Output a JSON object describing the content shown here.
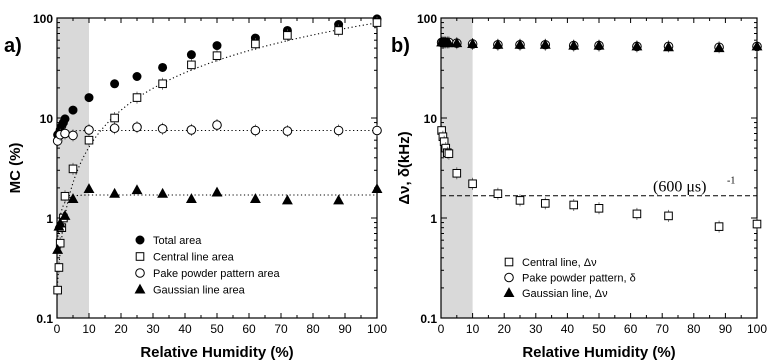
{
  "chart_data": [
    {
      "type": "scatter",
      "panel_label": "a)",
      "xlabel": "Relative Humidity (%)",
      "ylabel": "MC (%)",
      "xlim": [
        0,
        100
      ],
      "ylim": [
        0.1,
        100
      ],
      "yscale": "log",
      "x_ticks": [
        "0",
        "10",
        "20",
        "30",
        "40",
        "50",
        "60",
        "70",
        "80",
        "90",
        "100"
      ],
      "y_ticks": [
        "0.1",
        "1",
        "10",
        "100"
      ],
      "shaded_region": [
        0,
        10
      ],
      "legend_position": "bottom-center",
      "series": [
        {
          "name": "Total area",
          "marker": "filled-circle",
          "x": [
            0.2,
            0.6,
            1,
            1.5,
            2,
            2.5,
            5,
            10,
            18,
            25,
            33,
            42,
            50,
            62,
            72,
            88,
            100
          ],
          "y": [
            6.8,
            7.0,
            7.6,
            8.3,
            9.0,
            9.8,
            12.0,
            16.0,
            22.0,
            26.0,
            32.0,
            43.0,
            53.0,
            63.0,
            75.0,
            86.0,
            98.0
          ]
        },
        {
          "name": "Central line area",
          "marker": "open-square",
          "x": [
            0.2,
            0.6,
            1,
            1.5,
            2,
            2.5,
            5,
            10,
            18,
            25,
            33,
            42,
            50,
            62,
            72,
            88,
            100
          ],
          "y": [
            0.19,
            0.32,
            0.56,
            0.8,
            1.0,
            1.65,
            3.1,
            6.0,
            10.0,
            16.0,
            22.0,
            34.0,
            42.0,
            55.0,
            67.0,
            75.0,
            90.0
          ]
        },
        {
          "name": "Pake powder pattern area",
          "marker": "open-circle",
          "x": [
            0.2,
            1,
            2.5,
            5,
            10,
            18,
            25,
            33,
            42,
            50,
            62,
            72,
            88,
            100
          ],
          "y": [
            5.9,
            6.8,
            7.0,
            6.7,
            7.6,
            7.9,
            8.1,
            7.8,
            7.6,
            8.5,
            7.5,
            7.4,
            7.5,
            7.5
          ]
        },
        {
          "name": "Gaussian line area",
          "marker": "filled-triangle",
          "x": [
            0.2,
            0.6,
            1,
            2.5,
            5,
            10,
            18,
            25,
            33,
            42,
            50,
            62,
            72,
            88,
            100
          ],
          "y": [
            0.48,
            0.82,
            0.88,
            1.05,
            1.55,
            1.95,
            1.75,
            1.9,
            1.75,
            1.55,
            1.8,
            1.55,
            1.5,
            1.5,
            1.95
          ]
        }
      ]
    },
    {
      "type": "scatter",
      "panel_label": "b)",
      "xlabel": "Relative Humidity (%)",
      "ylabel": "Δν, δ(kHz)",
      "xlim": [
        0,
        100
      ],
      "ylim": [
        0.1,
        100
      ],
      "yscale": "log",
      "x_ticks": [
        "0",
        "10",
        "20",
        "30",
        "40",
        "50",
        "60",
        "70",
        "80",
        "90",
        "100"
      ],
      "y_ticks": [
        "0.1",
        "1",
        "10",
        "100"
      ],
      "shaded_region": [
        0,
        10
      ],
      "legend_position": "bottom-center",
      "reference_line": {
        "y": 1.67,
        "label": "(600 μs)",
        "exponent": "-1"
      },
      "series": [
        {
          "name": "Central line, Δν",
          "marker": "open-square",
          "x": [
            0.2,
            0.6,
            1,
            1.5,
            2,
            2.5,
            5,
            10,
            18,
            25,
            33,
            42,
            50,
            62,
            72,
            88,
            100
          ],
          "y": [
            7.5,
            6.5,
            5.8,
            5.0,
            4.5,
            4.4,
            2.8,
            2.2,
            1.75,
            1.5,
            1.4,
            1.35,
            1.25,
            1.1,
            1.05,
            0.82,
            0.87
          ]
        },
        {
          "name": "Pake powder pattern, δ",
          "marker": "open-circle",
          "x": [
            0.2,
            0.6,
            1,
            1.5,
            2,
            2.5,
            5,
            10,
            18,
            25,
            33,
            42,
            50,
            62,
            72,
            88,
            100
          ],
          "y": [
            57,
            57,
            57,
            57,
            57,
            57,
            56,
            55,
            54,
            54,
            54,
            53,
            53,
            52,
            52,
            51,
            52
          ]
        },
        {
          "name": "Gaussian line, Δν",
          "marker": "filled-triangle",
          "x": [
            0.2,
            0.6,
            1,
            1.5,
            2,
            2.5,
            5,
            10,
            18,
            25,
            33,
            42,
            50,
            62,
            72,
            88,
            100
          ],
          "y": [
            57,
            57,
            57,
            57,
            56,
            56,
            56,
            55,
            54,
            54,
            54,
            53,
            53,
            52,
            51,
            50,
            52
          ]
        }
      ]
    }
  ]
}
